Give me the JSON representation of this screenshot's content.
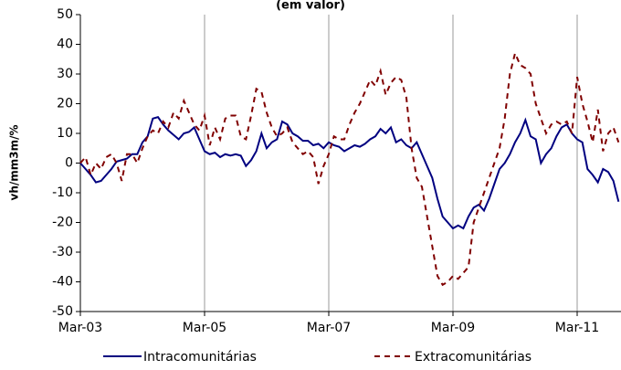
{
  "chart_data": {
    "type": "line",
    "title": "(em valor)",
    "y_label": "vh/mm3m/%",
    "categories": [
      "Mar-03",
      null,
      null,
      null,
      null,
      null,
      null,
      null,
      null,
      null,
      null,
      null,
      null,
      null,
      null,
      null,
      null,
      null,
      null,
      null,
      null,
      null,
      null,
      null,
      "Mar-05",
      null,
      null,
      null,
      null,
      null,
      null,
      null,
      null,
      null,
      null,
      null,
      null,
      null,
      null,
      null,
      null,
      null,
      null,
      null,
      null,
      null,
      null,
      null,
      "Mar-07",
      null,
      null,
      null,
      null,
      null,
      null,
      null,
      null,
      null,
      null,
      null,
      null,
      null,
      null,
      null,
      null,
      null,
      null,
      null,
      null,
      null,
      null,
      null,
      "Mar-09",
      null,
      null,
      null,
      null,
      null,
      null,
      null,
      null,
      null,
      null,
      null,
      null,
      null,
      null,
      null,
      null,
      null,
      null,
      null,
      null,
      null,
      null,
      null,
      "Mar-11",
      null,
      null,
      null,
      null,
      null,
      null,
      null,
      null
    ],
    "series": [
      {
        "name": "Intracomunitárias",
        "color": "#000080",
        "dash": false,
        "values": [
          0,
          -2,
          -4,
          -6.5,
          -6,
          -4,
          -2,
          0.5,
          1,
          1.5,
          3,
          3,
          7,
          9,
          15,
          15.5,
          13,
          11,
          9.5,
          8,
          10,
          10.5,
          12,
          8,
          4,
          3,
          3.5,
          2,
          3,
          2.5,
          3,
          2.5,
          -1,
          1,
          4,
          10,
          5,
          7,
          8,
          14,
          13,
          10,
          9,
          7.5,
          7.5,
          6,
          6.5,
          5,
          7,
          6,
          5.5,
          4,
          5,
          6,
          5.5,
          6.5,
          8,
          9,
          11.5,
          10,
          12,
          7,
          8,
          6,
          5,
          7,
          3,
          -1,
          -5,
          -12,
          -18,
          -20,
          -22,
          -21,
          -22,
          -18,
          -15,
          -14,
          -16,
          -12,
          -7,
          -2,
          0,
          3,
          7,
          10,
          14.5,
          9,
          8,
          0,
          3,
          5,
          9,
          12,
          13,
          10,
          8,
          7,
          -2,
          -4,
          -6.5,
          -2,
          -3,
          -6,
          -13
        ]
      },
      {
        "name": "Extracomunitárias",
        "color": "#800000",
        "dash": true,
        "values": [
          0,
          2,
          -4,
          0,
          -2,
          2,
          3,
          0,
          -6,
          3,
          3,
          0,
          5,
          9,
          11,
          10,
          14,
          12,
          17,
          15,
          21,
          17,
          13,
          11,
          16,
          6,
          12,
          8,
          15,
          16,
          16,
          9,
          8,
          16,
          25,
          24,
          17,
          12,
          9,
          10,
          12,
          7,
          5,
          3,
          4,
          2,
          -7,
          -1,
          3,
          9,
          8,
          8,
          13,
          17,
          20,
          24,
          28,
          26,
          31,
          23,
          27,
          29,
          28,
          22,
          5,
          -5,
          -8,
          -18,
          -28,
          -38,
          -41,
          -40,
          -38,
          -39,
          -37,
          -35,
          -20,
          -15,
          -10,
          -5,
          0,
          5,
          15,
          30,
          37,
          33,
          32,
          30,
          20,
          15,
          10,
          13,
          14,
          13,
          14,
          10,
          29,
          20,
          14,
          7,
          18,
          4,
          10,
          12,
          7
        ]
      }
    ],
    "ylim": [
      -50,
      50
    ],
    "yticks": [
      -50,
      -40,
      -30,
      -20,
      -10,
      0,
      10,
      20,
      30,
      40,
      50
    ],
    "grid": "x",
    "legend": "bottom"
  }
}
